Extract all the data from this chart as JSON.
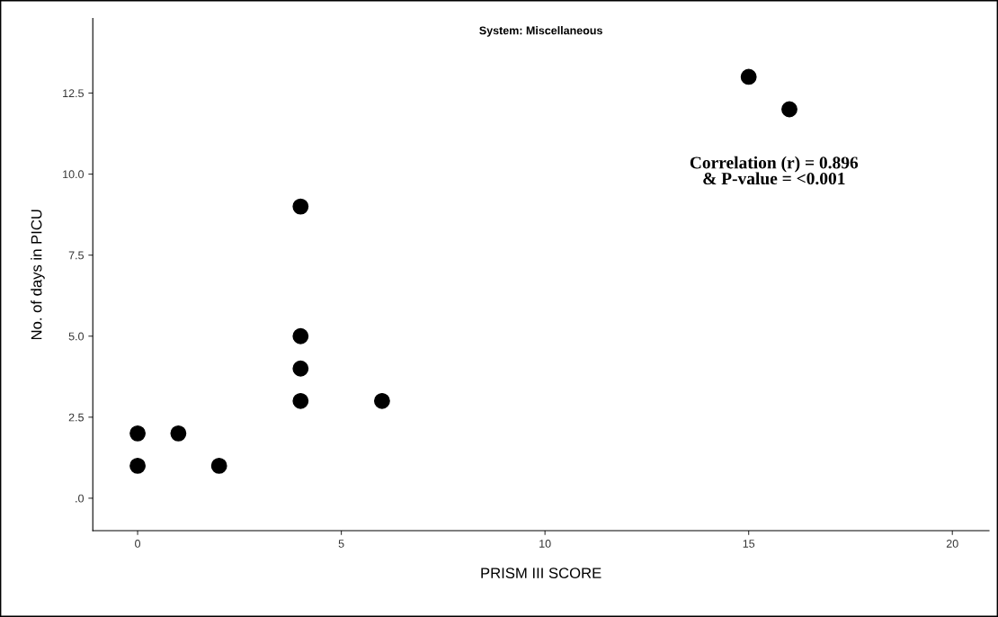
{
  "chart_data": {
    "type": "scatter",
    "title": "System: Miscellaneous",
    "xlabel": "PRISM III SCORE",
    "ylabel": "No. of days in PICU",
    "x": [
      0,
      0,
      1,
      2,
      4,
      4,
      4,
      4,
      6,
      15,
      16
    ],
    "series": [
      {
        "color": "#000000",
        "values": [
          2,
          1,
          2,
          1,
          9,
          5,
          4,
          3,
          3,
          13,
          12
        ]
      }
    ],
    "xlim": [
      -1.1,
      20.9
    ],
    "ylim": [
      -1.0,
      14.8
    ],
    "xticks": [
      0,
      5,
      10,
      15,
      20
    ],
    "yticks": [
      {
        "value": 0,
        "label": ".0"
      },
      2.5,
      {
        "value": 5,
        "label": "5.0"
      },
      7.5,
      {
        "value": 10,
        "label": "10.0"
      },
      12.5
    ],
    "annotations": [
      "Correlation (r) = 0.896\n& P-value = <0.001"
    ],
    "marker": "circle",
    "grid": false,
    "legend": false
  }
}
